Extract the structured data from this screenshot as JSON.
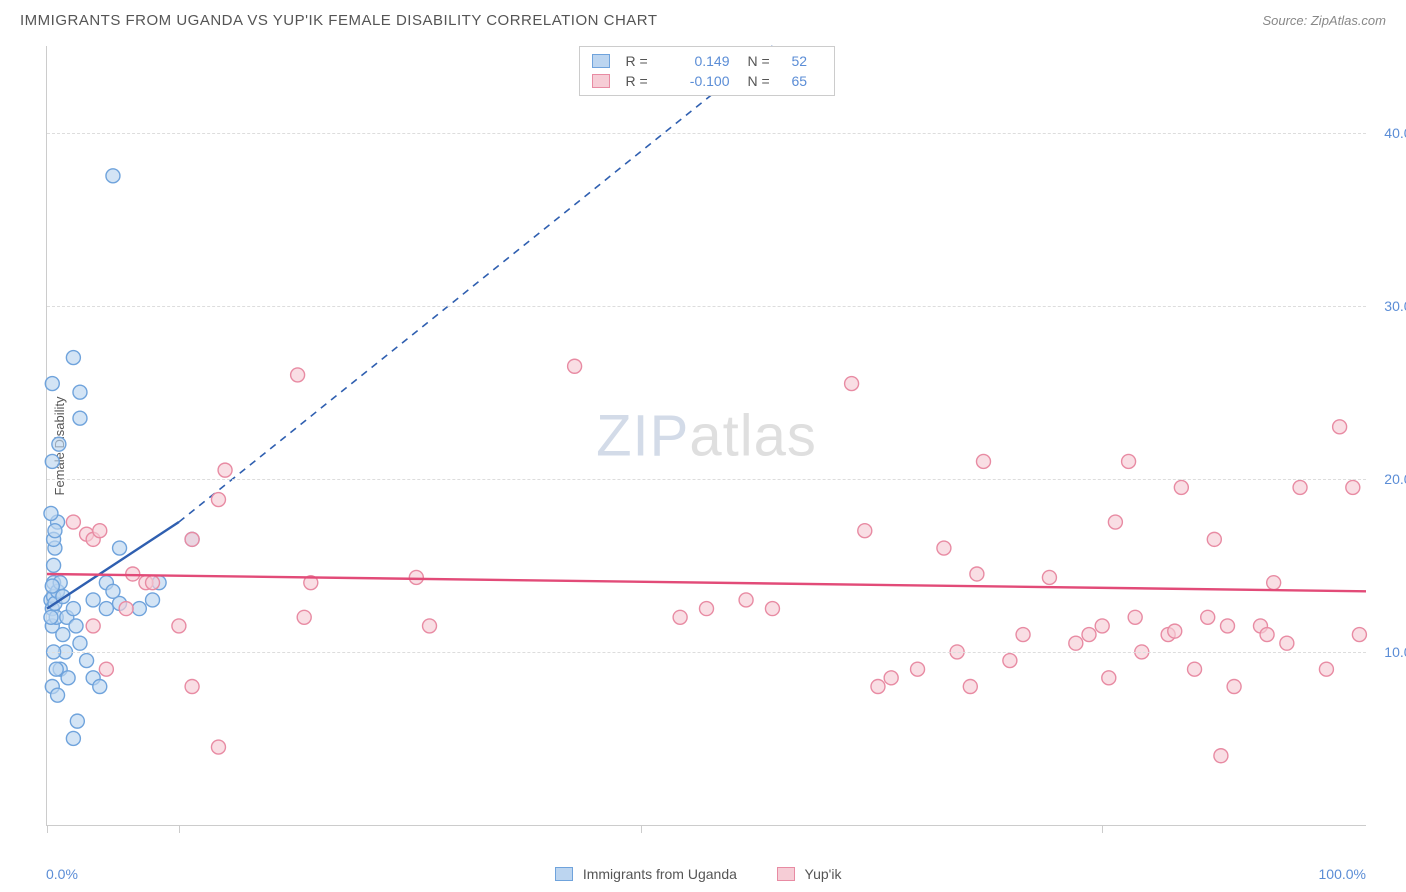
{
  "header": {
    "title": "IMMIGRANTS FROM UGANDA VS YUP'IK FEMALE DISABILITY CORRELATION CHART",
    "source_prefix": "Source: ",
    "source": "ZipAtlas.com"
  },
  "watermark": {
    "part1": "ZIP",
    "part2": "atlas"
  },
  "chart": {
    "type": "scatter",
    "ylabel": "Female Disability",
    "xlim": [
      0,
      100
    ],
    "ylim": [
      0,
      45
    ],
    "yticks": [
      10,
      20,
      30,
      40
    ],
    "ytick_labels": [
      "10.0%",
      "20.0%",
      "30.0%",
      "40.0%"
    ],
    "xticks": [
      0,
      10,
      45,
      80
    ],
    "xaxis_left_label": "0.0%",
    "xaxis_right_label": "100.0%",
    "grid_color": "#dddddd",
    "axis_color": "#cccccc",
    "background_color": "#ffffff",
    "marker_radius": 7,
    "marker_stroke_width": 1.4,
    "series": [
      {
        "name": "Immigrants from Uganda",
        "fill": "#bcd5f0",
        "stroke": "#6fa3dc",
        "line_color": "#2f5fb0",
        "r_label": "R =",
        "r_value": "0.149",
        "n_label": "N =",
        "n_value": "52",
        "trend": {
          "x1": 0,
          "y1": 12.5,
          "x2": 10,
          "y2": 17.5,
          "dash_extend_to_x": 55,
          "dash_extend_to_y": 45
        },
        "points": [
          [
            0.3,
            13.0
          ],
          [
            0.4,
            12.5
          ],
          [
            0.5,
            13.2
          ],
          [
            0.6,
            12.8
          ],
          [
            0.5,
            14.0
          ],
          [
            0.4,
            11.5
          ],
          [
            0.7,
            12.0
          ],
          [
            0.8,
            13.5
          ],
          [
            0.5,
            15.0
          ],
          [
            0.6,
            16.0
          ],
          [
            0.8,
            17.5
          ],
          [
            0.3,
            18.0
          ],
          [
            0.4,
            21.0
          ],
          [
            0.9,
            22.0
          ],
          [
            0.4,
            25.5
          ],
          [
            2.5,
            23.5
          ],
          [
            2.5,
            25.0
          ],
          [
            2.0,
            27.0
          ],
          [
            1.2,
            11.0
          ],
          [
            1.4,
            10.0
          ],
          [
            1.0,
            9.0
          ],
          [
            1.6,
            8.5
          ],
          [
            2.3,
            6.0
          ],
          [
            2.0,
            5.0
          ],
          [
            3.5,
            8.5
          ],
          [
            4.0,
            8.0
          ],
          [
            3.0,
            9.5
          ],
          [
            3.5,
            13.0
          ],
          [
            4.5,
            14.0
          ],
          [
            4.5,
            12.5
          ],
          [
            5.5,
            12.8
          ],
          [
            5.0,
            13.5
          ],
          [
            5.5,
            16.0
          ],
          [
            7.0,
            12.5
          ],
          [
            8.0,
            13.0
          ],
          [
            8.5,
            14.0
          ],
          [
            11.0,
            16.5
          ],
          [
            5.0,
            37.5
          ],
          [
            1.2,
            13.2
          ],
          [
            1.0,
            14.0
          ],
          [
            1.5,
            12.0
          ],
          [
            2.0,
            12.5
          ],
          [
            2.2,
            11.5
          ],
          [
            2.5,
            10.5
          ],
          [
            0.5,
            10.0
          ],
          [
            0.7,
            9.0
          ],
          [
            0.4,
            8.0
          ],
          [
            0.8,
            7.5
          ],
          [
            0.5,
            16.5
          ],
          [
            0.6,
            17.0
          ],
          [
            0.3,
            12.0
          ],
          [
            0.4,
            13.8
          ]
        ]
      },
      {
        "name": "Yup'ik",
        "fill": "#f6cdd6",
        "stroke": "#e88ba3",
        "line_color": "#e24b78",
        "r_label": "R =",
        "r_value": "-0.100",
        "n_label": "N =",
        "n_value": "65",
        "trend": {
          "x1": 0,
          "y1": 14.5,
          "x2": 100,
          "y2": 13.5
        },
        "points": [
          [
            2.0,
            17.5
          ],
          [
            3.0,
            16.8
          ],
          [
            3.5,
            16.5
          ],
          [
            4.0,
            17.0
          ],
          [
            6.5,
            14.5
          ],
          [
            7.5,
            14.0
          ],
          [
            8.0,
            14.0
          ],
          [
            10.0,
            11.5
          ],
          [
            11.0,
            8.0
          ],
          [
            13.0,
            4.5
          ],
          [
            11.0,
            16.5
          ],
          [
            13.0,
            18.8
          ],
          [
            13.5,
            20.5
          ],
          [
            19.0,
            26.0
          ],
          [
            19.5,
            12.0
          ],
          [
            20.0,
            14.0
          ],
          [
            28.0,
            14.3
          ],
          [
            29.0,
            11.5
          ],
          [
            40.0,
            26.5
          ],
          [
            48.0,
            12.0
          ],
          [
            50.0,
            12.5
          ],
          [
            53.0,
            13.0
          ],
          [
            55.0,
            12.5
          ],
          [
            61.0,
            25.5
          ],
          [
            62.0,
            17.0
          ],
          [
            63.0,
            8.0
          ],
          [
            64.0,
            8.5
          ],
          [
            66.0,
            9.0
          ],
          [
            68.0,
            16.0
          ],
          [
            69.0,
            10.0
          ],
          [
            70.0,
            8.0
          ],
          [
            70.5,
            14.5
          ],
          [
            71.0,
            21.0
          ],
          [
            73.0,
            9.5
          ],
          [
            74.0,
            11.0
          ],
          [
            76.0,
            14.3
          ],
          [
            78.0,
            10.5
          ],
          [
            79.0,
            11.0
          ],
          [
            80.0,
            11.5
          ],
          [
            80.5,
            8.5
          ],
          [
            81.0,
            17.5
          ],
          [
            82.0,
            21.0
          ],
          [
            82.5,
            12.0
          ],
          [
            83.0,
            10.0
          ],
          [
            85.0,
            11.0
          ],
          [
            85.5,
            11.2
          ],
          [
            86.0,
            19.5
          ],
          [
            87.0,
            9.0
          ],
          [
            88.0,
            12.0
          ],
          [
            88.5,
            16.5
          ],
          [
            89.0,
            4.0
          ],
          [
            89.5,
            11.5
          ],
          [
            90.0,
            8.0
          ],
          [
            92.0,
            11.5
          ],
          [
            92.5,
            11.0
          ],
          [
            93.0,
            14.0
          ],
          [
            94.0,
            10.5
          ],
          [
            95.0,
            19.5
          ],
          [
            97.0,
            9.0
          ],
          [
            98.0,
            23.0
          ],
          [
            99.0,
            19.5
          ],
          [
            99.5,
            11.0
          ],
          [
            3.5,
            11.5
          ],
          [
            4.5,
            9.0
          ],
          [
            6.0,
            12.5
          ]
        ]
      }
    ]
  }
}
